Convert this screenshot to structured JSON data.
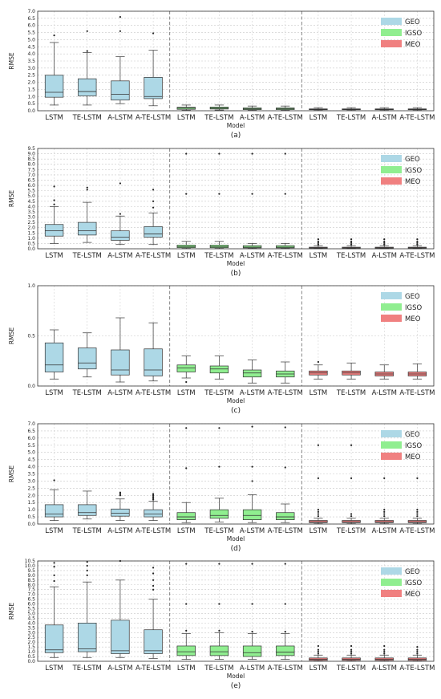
{
  "figure": {
    "x_axis_label": "Model",
    "y_axis_label": "RMSE"
  },
  "legend": [
    {
      "name": "GEO",
      "color": "#add8e6"
    },
    {
      "name": "IGSO",
      "color": "#90ee90"
    },
    {
      "name": "MEO",
      "color": "#f08080"
    }
  ],
  "chart_data": [
    {
      "type": "box",
      "caption": "(a)",
      "xlabel": "Model",
      "ylabel": "RMSE",
      "ylim": [
        0,
        7.0
      ],
      "yticks": [
        0,
        0.5,
        1.0,
        1.5,
        2.0,
        2.5,
        3.0,
        3.5,
        4.0,
        4.5,
        5.0,
        5.5,
        6.0,
        6.5,
        7.0
      ],
      "grid": true,
      "legend_position": "top-right",
      "categories": [
        "LSTM",
        "TE-LSTM",
        "A-LSTM",
        "A-TE-LSTM"
      ],
      "series": [
        {
          "name": "GEO",
          "boxes": [
            {
              "lo": 0.4,
              "q1": 0.95,
              "med": 1.3,
              "q3": 2.5,
              "hi": 4.8,
              "outliers": [
                5.3
              ]
            },
            {
              "lo": 0.4,
              "q1": 1.05,
              "med": 1.35,
              "q3": 2.25,
              "hi": 4.1,
              "outliers": [
                4.2,
                5.6
              ]
            },
            {
              "lo": 0.5,
              "q1": 0.75,
              "med": 1.15,
              "q3": 2.1,
              "hi": 3.8,
              "outliers": [
                5.6,
                6.6
              ]
            },
            {
              "lo": 0.35,
              "q1": 0.85,
              "med": 1.0,
              "q3": 2.35,
              "hi": 4.25,
              "outliers": [
                5.45
              ]
            }
          ]
        },
        {
          "name": "IGSO",
          "boxes": [
            {
              "lo": 0.03,
              "q1": 0.1,
              "med": 0.18,
              "q3": 0.25,
              "hi": 0.4,
              "outliers": []
            },
            {
              "lo": 0.05,
              "q1": 0.12,
              "med": 0.18,
              "q3": 0.26,
              "hi": 0.4,
              "outliers": []
            },
            {
              "lo": 0.03,
              "q1": 0.08,
              "med": 0.13,
              "q3": 0.2,
              "hi": 0.33,
              "outliers": []
            },
            {
              "lo": 0.03,
              "q1": 0.08,
              "med": 0.14,
              "q3": 0.2,
              "hi": 0.33,
              "outliers": []
            }
          ]
        },
        {
          "name": "MEO",
          "boxes": [
            {
              "lo": 0.02,
              "q1": 0.07,
              "med": 0.1,
              "q3": 0.13,
              "hi": 0.22,
              "outliers": []
            },
            {
              "lo": 0.02,
              "q1": 0.07,
              "med": 0.1,
              "q3": 0.13,
              "hi": 0.22,
              "outliers": []
            },
            {
              "lo": 0.02,
              "q1": 0.07,
              "med": 0.1,
              "q3": 0.13,
              "hi": 0.22,
              "outliers": []
            },
            {
              "lo": 0.02,
              "q1": 0.07,
              "med": 0.1,
              "q3": 0.13,
              "hi": 0.22,
              "outliers": []
            }
          ]
        }
      ]
    },
    {
      "type": "box",
      "caption": "(b)",
      "xlabel": "Model",
      "ylabel": "RMSE",
      "ylim": [
        0,
        9.5
      ],
      "yticks": [
        0,
        0.5,
        1.0,
        1.5,
        2.0,
        2.5,
        3.0,
        3.5,
        4.0,
        4.5,
        5.0,
        5.5,
        6.0,
        6.5,
        7.0,
        7.5,
        8.0,
        8.5,
        9.0,
        9.5
      ],
      "grid": true,
      "legend_position": "top-right",
      "categories": [
        "LSTM",
        "TE-LSTM",
        "A-LSTM",
        "A-TE-LSTM"
      ],
      "series": [
        {
          "name": "GEO",
          "boxes": [
            {
              "lo": 0.5,
              "q1": 1.2,
              "med": 1.7,
              "q3": 2.3,
              "hi": 4.0,
              "outliers": [
                4.2,
                4.6,
                5.9
              ]
            },
            {
              "lo": 0.6,
              "q1": 1.3,
              "med": 1.7,
              "q3": 2.5,
              "hi": 4.4,
              "outliers": [
                5.6,
                5.8
              ]
            },
            {
              "lo": 0.4,
              "q1": 0.8,
              "med": 1.1,
              "q3": 1.7,
              "hi": 3.1,
              "outliers": [
                3.3,
                6.2
              ]
            },
            {
              "lo": 0.4,
              "q1": 1.1,
              "med": 1.4,
              "q3": 2.1,
              "hi": 3.4,
              "outliers": [
                3.9,
                4.5,
                5.6
              ]
            }
          ]
        },
        {
          "name": "IGSO",
          "boxes": [
            {
              "lo": 0.03,
              "q1": 0.1,
              "med": 0.2,
              "q3": 0.35,
              "hi": 0.7,
              "outliers": [
                5.2,
                9.0
              ]
            },
            {
              "lo": 0.03,
              "q1": 0.1,
              "med": 0.2,
              "q3": 0.35,
              "hi": 0.7,
              "outliers": [
                5.2,
                9.0
              ]
            },
            {
              "lo": 0.03,
              "q1": 0.08,
              "med": 0.15,
              "q3": 0.3,
              "hi": 0.5,
              "outliers": [
                5.2,
                9.0
              ]
            },
            {
              "lo": 0.03,
              "q1": 0.08,
              "med": 0.15,
              "q3": 0.3,
              "hi": 0.5,
              "outliers": [
                5.2,
                9.0
              ]
            }
          ]
        },
        {
          "name": "MEO",
          "boxes": [
            {
              "lo": 0.02,
              "q1": 0.06,
              "med": 0.1,
              "q3": 0.15,
              "hi": 0.3,
              "outliers": [
                0.4,
                0.55,
                0.7,
                0.9
              ]
            },
            {
              "lo": 0.02,
              "q1": 0.06,
              "med": 0.1,
              "q3": 0.15,
              "hi": 0.3,
              "outliers": [
                0.4,
                0.55,
                0.7,
                0.9
              ]
            },
            {
              "lo": 0.02,
              "q1": 0.06,
              "med": 0.1,
              "q3": 0.15,
              "hi": 0.3,
              "outliers": [
                0.4,
                0.55,
                0.7,
                0.9
              ]
            },
            {
              "lo": 0.02,
              "q1": 0.06,
              "med": 0.1,
              "q3": 0.15,
              "hi": 0.3,
              "outliers": [
                0.4,
                0.55,
                0.7,
                0.9
              ]
            }
          ]
        }
      ]
    },
    {
      "type": "box",
      "caption": "(c)",
      "xlabel": "Model",
      "ylabel": "RMSE",
      "ylim": [
        0,
        1.0
      ],
      "yticks": [
        0,
        0.5,
        1.0
      ],
      "grid": true,
      "legend_position": "top-right",
      "categories": [
        "LSTM",
        "TE-LSTM",
        "A-LSTM",
        "A-TE-LSTM"
      ],
      "series": [
        {
          "name": "GEO",
          "boxes": [
            {
              "lo": 0.07,
              "q1": 0.14,
              "med": 0.21,
              "q3": 0.43,
              "hi": 0.56,
              "outliers": []
            },
            {
              "lo": 0.09,
              "q1": 0.17,
              "med": 0.23,
              "q3": 0.38,
              "hi": 0.53,
              "outliers": []
            },
            {
              "lo": 0.04,
              "q1": 0.11,
              "med": 0.16,
              "q3": 0.36,
              "hi": 0.68,
              "outliers": []
            },
            {
              "lo": 0.05,
              "q1": 0.1,
              "med": 0.16,
              "q3": 0.37,
              "hi": 0.63,
              "outliers": []
            }
          ]
        },
        {
          "name": "IGSO",
          "boxes": [
            {
              "lo": 0.08,
              "q1": 0.14,
              "med": 0.18,
              "q3": 0.21,
              "hi": 0.3,
              "outliers": [
                0.04
              ]
            },
            {
              "lo": 0.07,
              "q1": 0.13,
              "med": 0.17,
              "q3": 0.2,
              "hi": 0.3,
              "outliers": []
            },
            {
              "lo": 0.03,
              "q1": 0.09,
              "med": 0.13,
              "q3": 0.16,
              "hi": 0.26,
              "outliers": []
            },
            {
              "lo": 0.03,
              "q1": 0.09,
              "med": 0.12,
              "q3": 0.15,
              "hi": 0.24,
              "outliers": []
            }
          ]
        },
        {
          "name": "MEO",
          "boxes": [
            {
              "lo": 0.07,
              "q1": 0.11,
              "med": 0.13,
              "q3": 0.15,
              "hi": 0.21,
              "outliers": [
                0.24
              ]
            },
            {
              "lo": 0.07,
              "q1": 0.11,
              "med": 0.13,
              "q3": 0.15,
              "hi": 0.23,
              "outliers": []
            },
            {
              "lo": 0.07,
              "q1": 0.1,
              "med": 0.12,
              "q3": 0.14,
              "hi": 0.21,
              "outliers": []
            },
            {
              "lo": 0.07,
              "q1": 0.1,
              "med": 0.12,
              "q3": 0.14,
              "hi": 0.22,
              "outliers": []
            }
          ]
        }
      ]
    },
    {
      "type": "box",
      "caption": "(d)",
      "xlabel": "Model",
      "ylabel": "RMSE",
      "ylim": [
        0,
        7.0
      ],
      "yticks": [
        0,
        0.5,
        1.0,
        1.5,
        2.0,
        2.5,
        3.0,
        3.5,
        4.0,
        4.5,
        5.0,
        5.5,
        6.0,
        6.5,
        7.0
      ],
      "grid": true,
      "legend_position": "top-right",
      "categories": [
        "LSTM",
        "TE-LSTM",
        "A-LSTM",
        "A-TE-LSTM"
      ],
      "series": [
        {
          "name": "GEO",
          "boxes": [
            {
              "lo": 0.25,
              "q1": 0.5,
              "med": 0.7,
              "q3": 1.35,
              "hi": 2.4,
              "outliers": [
                3.05
              ]
            },
            {
              "lo": 0.35,
              "q1": 0.6,
              "med": 0.8,
              "q3": 1.35,
              "hi": 2.3,
              "outliers": []
            },
            {
              "lo": 0.25,
              "q1": 0.55,
              "med": 0.75,
              "q3": 1.05,
              "hi": 1.75,
              "outliers": [
                2.0,
                2.1,
                2.2
              ]
            },
            {
              "lo": 0.25,
              "q1": 0.5,
              "med": 0.7,
              "q3": 1.0,
              "hi": 1.6,
              "outliers": [
                1.7,
                1.8,
                1.9,
                2.0,
                2.1
              ]
            }
          ]
        },
        {
          "name": "IGSO",
          "boxes": [
            {
              "lo": 0.1,
              "q1": 0.3,
              "med": 0.5,
              "q3": 0.8,
              "hi": 1.5,
              "outliers": [
                3.9,
                6.7
              ]
            },
            {
              "lo": 0.15,
              "q1": 0.4,
              "med": 0.6,
              "q3": 1.0,
              "hi": 1.8,
              "outliers": [
                4.0,
                6.7
              ]
            },
            {
              "lo": 0.1,
              "q1": 0.3,
              "med": 0.6,
              "q3": 1.0,
              "hi": 2.05,
              "outliers": [
                3.0,
                4.0,
                6.8
              ]
            },
            {
              "lo": 0.1,
              "q1": 0.3,
              "med": 0.5,
              "q3": 0.8,
              "hi": 1.4,
              "outliers": [
                3.95,
                6.75
              ]
            }
          ]
        },
        {
          "name": "MEO",
          "boxes": [
            {
              "lo": 0.02,
              "q1": 0.1,
              "med": 0.15,
              "q3": 0.25,
              "hi": 0.4,
              "outliers": [
                0.55,
                0.7,
                0.85,
                1.0,
                3.2,
                5.5
              ]
            },
            {
              "lo": 0.02,
              "q1": 0.1,
              "med": 0.15,
              "q3": 0.25,
              "hi": 0.4,
              "outliers": [
                0.55,
                0.7,
                3.2,
                5.5
              ]
            },
            {
              "lo": 0.02,
              "q1": 0.1,
              "med": 0.15,
              "q3": 0.25,
              "hi": 0.4,
              "outliers": [
                0.55,
                0.7,
                0.85,
                1.0,
                3.2,
                5.5
              ]
            },
            {
              "lo": 0.02,
              "q1": 0.1,
              "med": 0.15,
              "q3": 0.25,
              "hi": 0.4,
              "outliers": [
                0.55,
                0.7,
                0.85,
                1.0,
                3.2
              ]
            }
          ]
        }
      ]
    },
    {
      "type": "box",
      "caption": "(e)",
      "xlabel": "Model",
      "ylabel": "RMSE",
      "ylim": [
        0,
        10.5
      ],
      "yticks": [
        0,
        0.5,
        1.0,
        1.5,
        2.0,
        2.5,
        3.0,
        3.5,
        4.0,
        4.5,
        5.0,
        5.5,
        6.0,
        6.5,
        7.0,
        7.5,
        8.0,
        8.5,
        9.0,
        9.5,
        10.0,
        10.5
      ],
      "grid": true,
      "legend_position": "top-right",
      "categories": [
        "LSTM",
        "TE-LSTM",
        "A-LSTM",
        "A-TE-LSTM"
      ],
      "series": [
        {
          "name": "GEO",
          "boxes": [
            {
              "lo": 0.4,
              "q1": 0.9,
              "med": 1.2,
              "q3": 3.8,
              "hi": 7.8,
              "outliers": [
                8.4,
                9.0,
                9.9,
                10.3
              ]
            },
            {
              "lo": 0.4,
              "q1": 1.0,
              "med": 1.3,
              "q3": 4.0,
              "hi": 8.3,
              "outliers": [
                9.0,
                9.5,
                10.0,
                10.4
              ]
            },
            {
              "lo": 0.4,
              "q1": 0.8,
              "med": 1.1,
              "q3": 4.3,
              "hi": 8.5,
              "outliers": [
                10.5
              ]
            },
            {
              "lo": 0.3,
              "q1": 0.8,
              "med": 1.1,
              "q3": 3.3,
              "hi": 6.5,
              "outliers": [
                7.5,
                7.9,
                8.5,
                9.2,
                9.8
              ]
            }
          ]
        },
        {
          "name": "IGSO",
          "boxes": [
            {
              "lo": 0.2,
              "q1": 0.6,
              "med": 1.0,
              "q3": 1.6,
              "hi": 2.9,
              "outliers": [
                3.2,
                6.0,
                10.2
              ]
            },
            {
              "lo": 0.2,
              "q1": 0.6,
              "med": 1.0,
              "q3": 1.6,
              "hi": 3.0,
              "outliers": [
                3.2,
                6.0,
                10.2
              ]
            },
            {
              "lo": 0.2,
              "q1": 0.5,
              "med": 0.9,
              "q3": 1.6,
              "hi": 2.9,
              "outliers": [
                3.1,
                6.0,
                10.2
              ]
            },
            {
              "lo": 0.2,
              "q1": 0.6,
              "med": 0.95,
              "q3": 1.6,
              "hi": 2.9,
              "outliers": [
                3.1,
                6.0,
                10.2
              ]
            }
          ]
        },
        {
          "name": "MEO",
          "boxes": [
            {
              "lo": 0.02,
              "q1": 0.1,
              "med": 0.2,
              "q3": 0.35,
              "hi": 0.65,
              "outliers": [
                0.8,
                1.0,
                1.2,
                1.6
              ]
            },
            {
              "lo": 0.02,
              "q1": 0.1,
              "med": 0.2,
              "q3": 0.35,
              "hi": 0.65,
              "outliers": [
                0.8,
                1.0,
                1.2,
                1.6
              ]
            },
            {
              "lo": 0.02,
              "q1": 0.1,
              "med": 0.2,
              "q3": 0.35,
              "hi": 0.65,
              "outliers": [
                0.8,
                1.0,
                1.2,
                1.6
              ]
            },
            {
              "lo": 0.02,
              "q1": 0.1,
              "med": 0.2,
              "q3": 0.35,
              "hi": 0.65,
              "outliers": [
                0.8,
                1.0,
                1.2,
                1.5
              ]
            }
          ]
        }
      ]
    }
  ]
}
